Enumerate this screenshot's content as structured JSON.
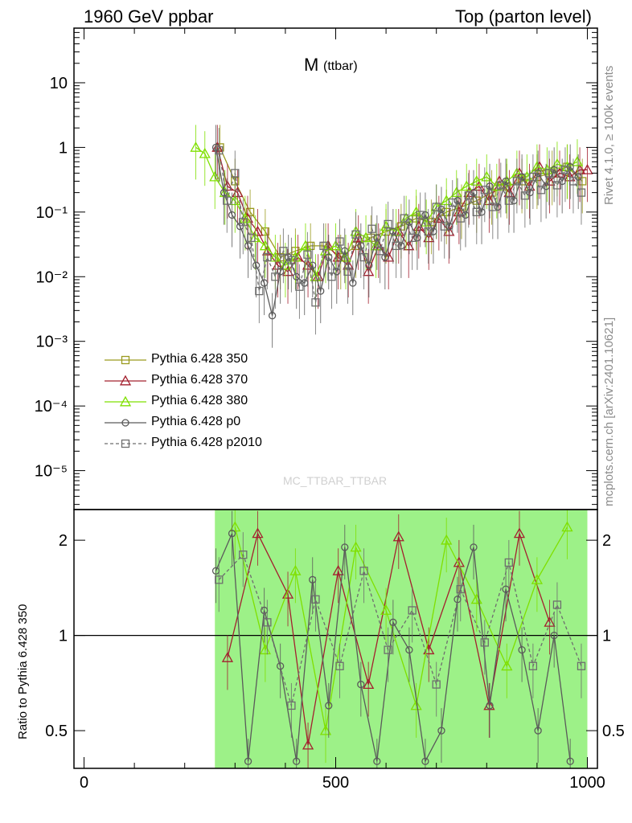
{
  "header": {
    "left": "1960 GeV ppbar",
    "right": "Top (parton level)"
  },
  "side_labels": {
    "rivet": "Rivet 4.1.0, ≥ 100k events",
    "mcplots": "mcplots.cern.ch [arXiv:2401.10621]"
  },
  "watermark": "MC_TTBAR_TTBAR",
  "chart_data": [
    {
      "type": "line",
      "title": "M",
      "title_sub": "(ttbar)",
      "xlim": [
        -20,
        1020
      ],
      "ylim": [
        2.5e-06,
        70
      ],
      "log_y": true,
      "grid": false,
      "legend_position": "left",
      "y_ticks": [
        {
          "value": 1e-05,
          "label": "10⁻⁵"
        },
        {
          "value": 0.0001,
          "label": "10⁻⁴"
        },
        {
          "value": 0.001,
          "label": "10⁻³"
        },
        {
          "value": 0.01,
          "label": "10⁻²"
        },
        {
          "value": 0.1,
          "label": "10⁻¹"
        },
        {
          "value": 1,
          "label": "1"
        },
        {
          "value": 10,
          "label": "10"
        }
      ],
      "series": [
        {
          "name": "Pythia 6.428 350",
          "color": "#9a9a1f",
          "marker": "square",
          "dashed": false,
          "x": [
            270,
            300,
            330,
            360,
            390,
            420,
            450,
            480,
            510,
            540,
            570,
            600,
            630,
            660,
            690,
            720,
            750,
            780,
            810,
            840,
            870,
            900,
            930,
            960,
            990
          ],
          "y": [
            1.0,
            0.3,
            0.1,
            0.05,
            0.02,
            0.025,
            0.03,
            0.03,
            0.02,
            0.03,
            0.04,
            0.05,
            0.06,
            0.08,
            0.07,
            0.1,
            0.12,
            0.15,
            0.2,
            0.25,
            0.3,
            0.35,
            0.4,
            0.5,
            0.3
          ]
        },
        {
          "name": "Pythia 6.428 370",
          "color": "#a3202f",
          "marker": "triangle",
          "dashed": false,
          "x": [
            265,
            285,
            305,
            325,
            345,
            365,
            385,
            405,
            425,
            445,
            465,
            485,
            505,
            525,
            545,
            565,
            585,
            605,
            625,
            645,
            665,
            685,
            705,
            725,
            745,
            765,
            785,
            805,
            825,
            845,
            865,
            885,
            905,
            925,
            945,
            965,
            985,
            1000
          ],
          "y": [
            1.0,
            0.25,
            0.2,
            0.08,
            0.05,
            0.025,
            0.015,
            0.012,
            0.02,
            0.015,
            0.01,
            0.03,
            0.02,
            0.015,
            0.04,
            0.012,
            0.03,
            0.02,
            0.05,
            0.03,
            0.06,
            0.04,
            0.08,
            0.05,
            0.1,
            0.2,
            0.25,
            0.15,
            0.3,
            0.2,
            0.4,
            0.25,
            0.5,
            0.3,
            0.4,
            0.35,
            0.45,
            0.45
          ]
        },
        {
          "name": "Pythia 6.428 380",
          "color": "#7fe000",
          "marker": "triangle",
          "dashed": false,
          "x": [
            222,
            240,
            260,
            280,
            300,
            320,
            340,
            360,
            380,
            400,
            420,
            440,
            460,
            480,
            500,
            520,
            540,
            560,
            580,
            600,
            620,
            640,
            660,
            680,
            700,
            720,
            740,
            760,
            780,
            800,
            820,
            840,
            860,
            880,
            900,
            920,
            940,
            960,
            980
          ],
          "y": [
            1.0,
            0.8,
            0.35,
            0.2,
            0.15,
            0.08,
            0.04,
            0.03,
            0.02,
            0.015,
            0.02,
            0.03,
            0.01,
            0.025,
            0.03,
            0.02,
            0.05,
            0.04,
            0.03,
            0.06,
            0.05,
            0.08,
            0.1,
            0.07,
            0.12,
            0.15,
            0.2,
            0.25,
            0.3,
            0.35,
            0.25,
            0.3,
            0.4,
            0.35,
            0.5,
            0.45,
            0.55,
            0.5,
            0.6
          ]
        },
        {
          "name": "Pythia 6.428 p0",
          "color": "#5a5a5a",
          "marker": "circle",
          "dashed": false,
          "x": [
            262,
            278,
            294,
            310,
            326,
            342,
            358,
            374,
            390,
            406,
            422,
            438,
            454,
            470,
            486,
            502,
            518,
            534,
            550,
            566,
            582,
            598,
            614,
            630,
            646,
            662,
            678,
            694,
            710,
            726,
            742,
            758,
            774,
            790,
            806,
            822,
            838,
            854,
            870,
            886,
            902,
            918,
            934,
            950,
            966,
            982
          ],
          "y": [
            1.0,
            0.2,
            0.09,
            0.06,
            0.03,
            0.015,
            0.008,
            0.0025,
            0.012,
            0.02,
            0.01,
            0.008,
            0.015,
            0.006,
            0.02,
            0.012,
            0.025,
            0.008,
            0.03,
            0.015,
            0.04,
            0.02,
            0.05,
            0.03,
            0.07,
            0.04,
            0.09,
            0.05,
            0.11,
            0.06,
            0.15,
            0.09,
            0.2,
            0.1,
            0.25,
            0.12,
            0.3,
            0.15,
            0.35,
            0.2,
            0.4,
            0.25,
            0.45,
            0.3,
            0.5,
            0.35
          ]
        },
        {
          "name": "Pythia 6.428 p2010",
          "color": "#6e6e6e",
          "marker": "square-open",
          "dashed": true,
          "x": [
            268,
            284,
            300,
            316,
            332,
            348,
            364,
            380,
            396,
            412,
            428,
            444,
            460,
            476,
            492,
            508,
            524,
            540,
            556,
            572,
            588,
            604,
            620,
            636,
            652,
            668,
            684,
            700,
            716,
            732,
            748,
            764,
            780,
            796,
            812,
            828,
            844,
            860,
            876,
            892,
            908,
            924,
            940,
            956,
            972,
            988
          ],
          "y": [
            0.9,
            0.15,
            0.4,
            0.07,
            0.04,
            0.006,
            0.02,
            0.01,
            0.025,
            0.018,
            0.007,
            0.022,
            0.004,
            0.03,
            0.01,
            0.035,
            0.012,
            0.045,
            0.02,
            0.055,
            0.025,
            0.065,
            0.03,
            0.08,
            0.04,
            0.09,
            0.05,
            0.12,
            0.06,
            0.14,
            0.08,
            0.18,
            0.1,
            0.22,
            0.12,
            0.26,
            0.15,
            0.3,
            0.18,
            0.35,
            0.22,
            0.4,
            0.26,
            0.45,
            0.3,
            0.2
          ]
        }
      ]
    },
    {
      "type": "line",
      "ylabel": "Ratio to Pythia 6.428 350",
      "xlim": [
        -20,
        1020
      ],
      "ylim": [
        0.38,
        2.5
      ],
      "log_y": true,
      "grid": false,
      "reference_line": 1,
      "x_ticks": [
        {
          "value": 0,
          "label": "0"
        },
        {
          "value": 500,
          "label": "500"
        },
        {
          "value": 1000,
          "label": "1000"
        }
      ],
      "y_ticks": [
        {
          "value": 0.5,
          "label": "0.5"
        },
        {
          "value": 1,
          "label": "1"
        },
        {
          "value": 2,
          "label": "2"
        }
      ],
      "bands": [
        {
          "name": "Pythia 6.428 350 band",
          "color": "#ffff66",
          "x_range": [
            260,
            1000
          ],
          "y_range": [
            0.38,
            2.5
          ]
        },
        {
          "name": "Pythia 6.428 380 band",
          "color": "#7cec7c",
          "x_range": [
            260,
            1000
          ],
          "y_range": [
            0.38,
            2.5
          ]
        }
      ],
      "series": [
        {
          "name": "Pythia 6.428 370",
          "color": "#a3202f",
          "marker": "triangle",
          "dashed": false,
          "x": [
            285,
            345,
            405,
            445,
            505,
            565,
            625,
            685,
            745,
            805,
            865,
            925
          ],
          "y": [
            0.85,
            2.1,
            1.35,
            0.45,
            1.6,
            0.7,
            2.05,
            0.9,
            1.7,
            0.6,
            2.1,
            1.1
          ]
        },
        {
          "name": "Pythia 6.428 380",
          "color": "#7fe000",
          "marker": "triangle",
          "dashed": false,
          "x": [
            300,
            360,
            420,
            480,
            540,
            600,
            660,
            720,
            780,
            840,
            900,
            960
          ],
          "y": [
            2.2,
            0.9,
            1.6,
            0.5,
            1.9,
            1.2,
            0.6,
            2.0,
            1.3,
            0.8,
            1.5,
            2.2
          ]
        },
        {
          "name": "Pythia 6.428 p0",
          "color": "#5a5a5a",
          "marker": "circle",
          "dashed": false,
          "x": [
            262,
            294,
            326,
            358,
            390,
            422,
            454,
            486,
            518,
            550,
            582,
            614,
            646,
            678,
            710,
            742,
            774,
            806,
            838,
            870,
            902,
            934,
            966
          ],
          "y": [
            1.6,
            2.1,
            0.4,
            1.2,
            0.8,
            0.4,
            1.5,
            0.6,
            1.9,
            0.7,
            0.4,
            1.1,
            0.9,
            0.4,
            0.5,
            1.3,
            1.9,
            0.6,
            1.4,
            0.9,
            0.5,
            1.0,
            0.4
          ]
        },
        {
          "name": "Pythia 6.428 p2010",
          "color": "#6e6e6e",
          "marker": "square-open",
          "dashed": true,
          "x": [
            268,
            316,
            364,
            412,
            460,
            508,
            556,
            604,
            652,
            700,
            748,
            796,
            844,
            892,
            940,
            988
          ],
          "y": [
            1.5,
            1.8,
            1.1,
            0.6,
            1.3,
            0.8,
            1.6,
            0.9,
            1.2,
            0.7,
            1.4,
            0.95,
            1.7,
            0.8,
            1.25,
            0.8
          ]
        }
      ]
    }
  ]
}
